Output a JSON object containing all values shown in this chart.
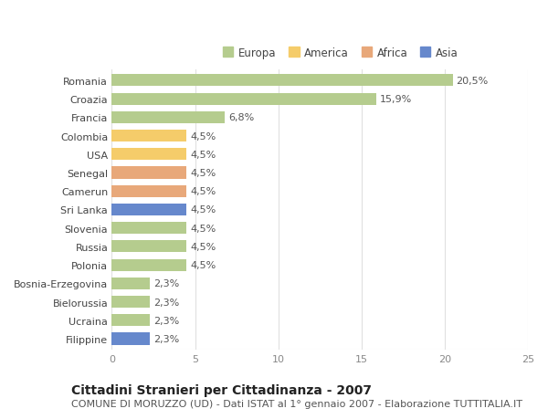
{
  "countries": [
    "Romania",
    "Croazia",
    "Francia",
    "Colombia",
    "USA",
    "Senegal",
    "Camerun",
    "Sri Lanka",
    "Slovenia",
    "Russia",
    "Polonia",
    "Bosnia-Erzegovina",
    "Bielorussia",
    "Ucraina",
    "Filippine"
  ],
  "values": [
    20.5,
    15.9,
    6.8,
    4.5,
    4.5,
    4.5,
    4.5,
    4.5,
    4.5,
    4.5,
    4.5,
    2.3,
    2.3,
    2.3,
    2.3
  ],
  "labels": [
    "20,5%",
    "15,9%",
    "6,8%",
    "4,5%",
    "4,5%",
    "4,5%",
    "4,5%",
    "4,5%",
    "4,5%",
    "4,5%",
    "4,5%",
    "2,3%",
    "2,3%",
    "2,3%",
    "2,3%"
  ],
  "colors": [
    "#b5cc8e",
    "#b5cc8e",
    "#b5cc8e",
    "#f5cc6a",
    "#f5cc6a",
    "#e8a87a",
    "#e8a87a",
    "#6688cc",
    "#b5cc8e",
    "#b5cc8e",
    "#b5cc8e",
    "#b5cc8e",
    "#b5cc8e",
    "#b5cc8e",
    "#6688cc"
  ],
  "legend_labels": [
    "Europa",
    "America",
    "Africa",
    "Asia"
  ],
  "legend_colors": [
    "#b5cc8e",
    "#f5cc6a",
    "#e8a87a",
    "#6688cc"
  ],
  "xlim": [
    0,
    25
  ],
  "xticks": [
    0,
    5,
    10,
    15,
    20,
    25
  ],
  "title": "Cittadini Stranieri per Cittadinanza - 2007",
  "subtitle": "COMUNE DI MORUZZO (UD) - Dati ISTAT al 1° gennaio 2007 - Elaborazione TUTTITALIA.IT",
  "bg_color": "#ffffff",
  "bar_height": 0.65,
  "grid_color": "#e0e0e0",
  "label_fontsize": 8,
  "title_fontsize": 10,
  "subtitle_fontsize": 8
}
